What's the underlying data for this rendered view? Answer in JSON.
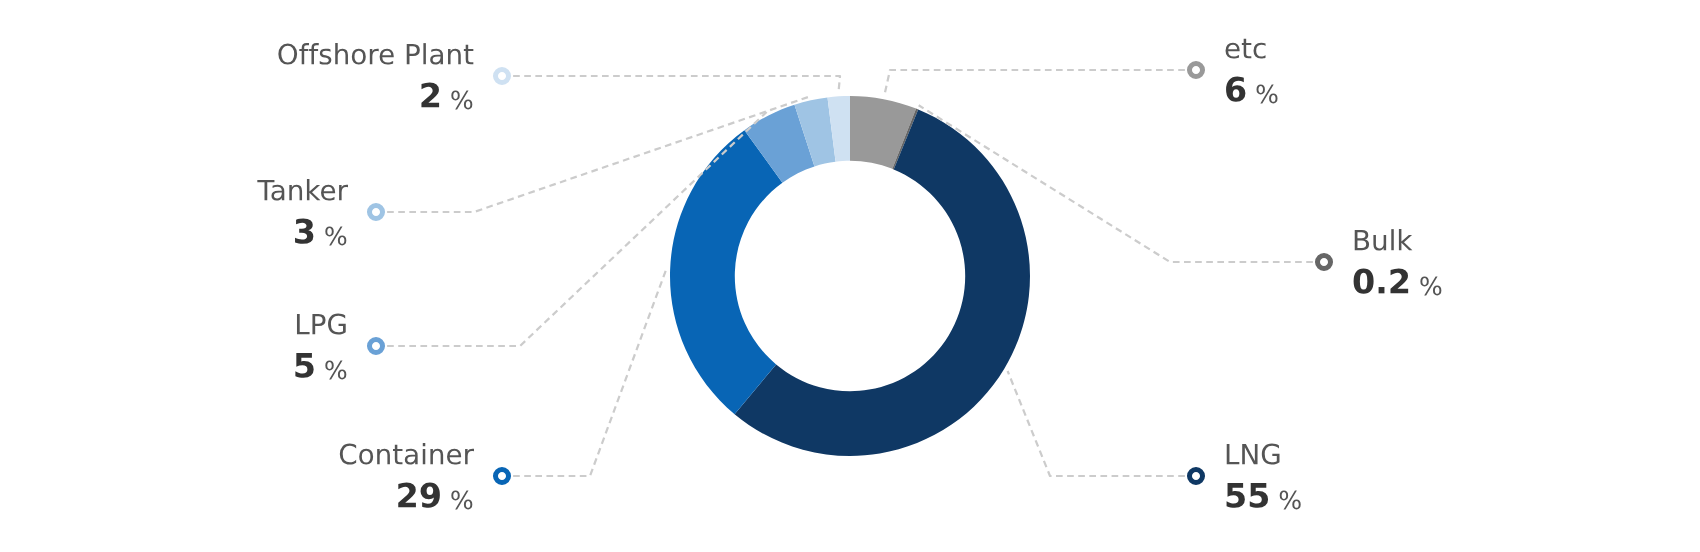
{
  "chart_data": {
    "type": "donut",
    "categories": [
      "etc",
      "Bulk",
      "LNG",
      "Container",
      "LPG",
      "Tanker",
      "Offshore Plant"
    ],
    "values": [
      6,
      0.2,
      55,
      29,
      5,
      3,
      2
    ],
    "value_labels": [
      "6 %",
      "0.2 %",
      "55 %",
      "29 %",
      "5 %",
      "3 %",
      "2 %"
    ],
    "colors": [
      "#999999",
      "#666666",
      "#0f3864",
      "#0865b5",
      "#6aa1d6",
      "#9fc4e4",
      "#cfe1f2"
    ],
    "legend": false
  }
}
